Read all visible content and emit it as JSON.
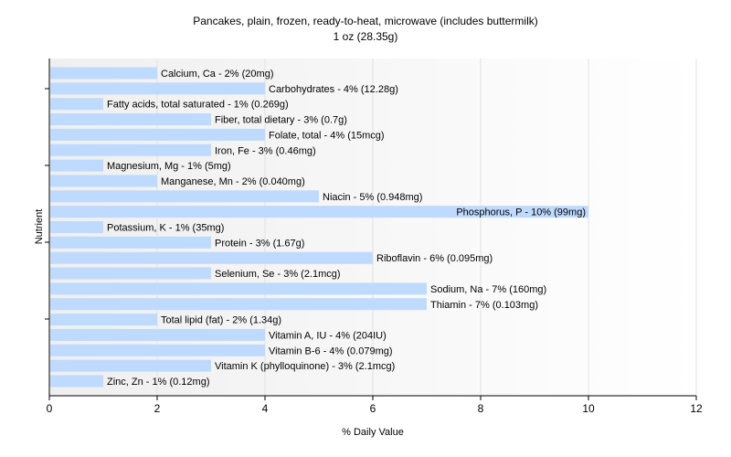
{
  "chart_data": {
    "type": "bar",
    "orientation": "horizontal",
    "title": "Pancakes, plain, frozen, ready-to-heat, microwave (includes buttermilk)",
    "subtitle": "1 oz (28.35g)",
    "xlabel": "% Daily Value",
    "ylabel": "Nutrient",
    "xlim": [
      0,
      12
    ],
    "xticks": [
      0,
      2,
      4,
      6,
      8,
      10,
      12
    ],
    "grid": true,
    "bar_color": "#bfdaff",
    "categories": [
      "Calcium, Ca",
      "Carbohydrates",
      "Fatty acids, total saturated",
      "Fiber, total dietary",
      "Folate, total",
      "Iron, Fe",
      "Magnesium, Mg",
      "Manganese, Mn",
      "Niacin",
      "Phosphorus, P",
      "Potassium, K",
      "Protein",
      "Riboflavin",
      "Selenium, Se",
      "Sodium, Na",
      "Thiamin",
      "Total lipid (fat)",
      "Vitamin A, IU",
      "Vitamin B-6",
      "Vitamin K (phylloquinone)",
      "Zinc, Zn"
    ],
    "values": [
      2,
      4,
      1,
      3,
      4,
      3,
      1,
      2,
      5,
      10,
      1,
      3,
      6,
      3,
      7,
      7,
      2,
      4,
      4,
      3,
      1
    ],
    "labels": [
      "Calcium, Ca - 2% (20mg)",
      "Carbohydrates - 4% (12.28g)",
      "Fatty acids, total saturated - 1% (0.269g)",
      "Fiber, total dietary - 3% (0.7g)",
      "Folate, total - 4% (15mcg)",
      "Iron, Fe - 3% (0.46mg)",
      "Magnesium, Mg - 1% (5mg)",
      "Manganese, Mn - 2% (0.040mg)",
      "Niacin - 5% (0.948mg)",
      "Phosphorus, P - 10% (99mg)",
      "Potassium, K - 1% (35mg)",
      "Protein - 3% (1.67g)",
      "Riboflavin - 6% (0.095mg)",
      "Selenium, Se - 3% (2.1mcg)",
      "Sodium, Na - 7% (160mg)",
      "Thiamin - 7% (0.103mg)",
      "Total lipid (fat) - 2% (1.34g)",
      "Vitamin A, IU - 4% (204IU)",
      "Vitamin B-6 - 4% (0.079mg)",
      "Vitamin K (phylloquinone) - 3% (2.1mcg)",
      "Zinc, Zn - 1% (0.12mg)"
    ]
  }
}
